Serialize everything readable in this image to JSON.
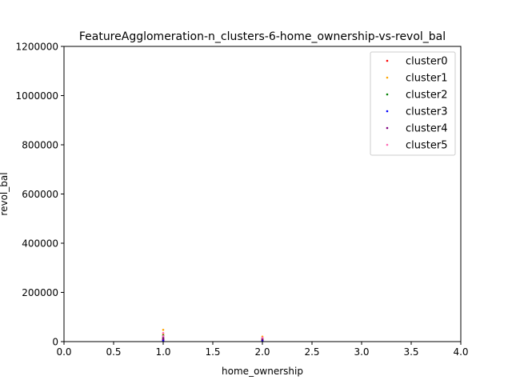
{
  "chart_data": {
    "type": "scatter",
    "title": "FeatureAgglomeration-n_clusters-6-home_ownership-vs-revol_bal",
    "xlabel": "home_ownership",
    "ylabel": "revol_bal",
    "xlim": [
      0.0,
      4.0
    ],
    "ylim": [
      0,
      1200000
    ],
    "xticks": [
      "0.0",
      "0.5",
      "1.0",
      "1.5",
      "2.0",
      "2.5",
      "3.0",
      "3.5",
      "4.0"
    ],
    "yticks": [
      "0",
      "200000",
      "400000",
      "600000",
      "800000",
      "1000000",
      "1200000"
    ],
    "grid": false,
    "legend_position": "top-right",
    "series": [
      {
        "name": "cluster0",
        "color": "#ff0000",
        "points": [
          [
            1.0,
            2000
          ],
          [
            1.0,
            5000
          ],
          [
            1.0,
            9000
          ],
          [
            2.0,
            3000
          ],
          [
            2.0,
            6000
          ]
        ]
      },
      {
        "name": "cluster1",
        "color": "#ffa500",
        "points": [
          [
            1.0,
            48000
          ],
          [
            1.0,
            30000
          ],
          [
            1.0,
            15000
          ],
          [
            2.0,
            20000
          ],
          [
            2.0,
            14000
          ],
          [
            2.0,
            8000
          ]
        ]
      },
      {
        "name": "cluster2",
        "color": "#008000",
        "points": [
          [
            1.0,
            25000
          ],
          [
            1.0,
            12000
          ],
          [
            2.0,
            11000
          ],
          [
            2.0,
            5000
          ]
        ]
      },
      {
        "name": "cluster3",
        "color": "#0000ff",
        "points": [
          [
            1.0,
            7000
          ],
          [
            1.0,
            3000
          ],
          [
            2.0,
            4000
          ]
        ]
      },
      {
        "name": "cluster4",
        "color": "#800080",
        "points": [
          [
            1.0,
            18000
          ],
          [
            1.0,
            10000
          ],
          [
            2.0,
            9000
          ]
        ]
      },
      {
        "name": "cluster5",
        "color": "#ff69b4",
        "points": [
          [
            1.0,
            35000
          ],
          [
            1.0,
            22000
          ],
          [
            2.0,
            16000
          ]
        ]
      }
    ]
  }
}
